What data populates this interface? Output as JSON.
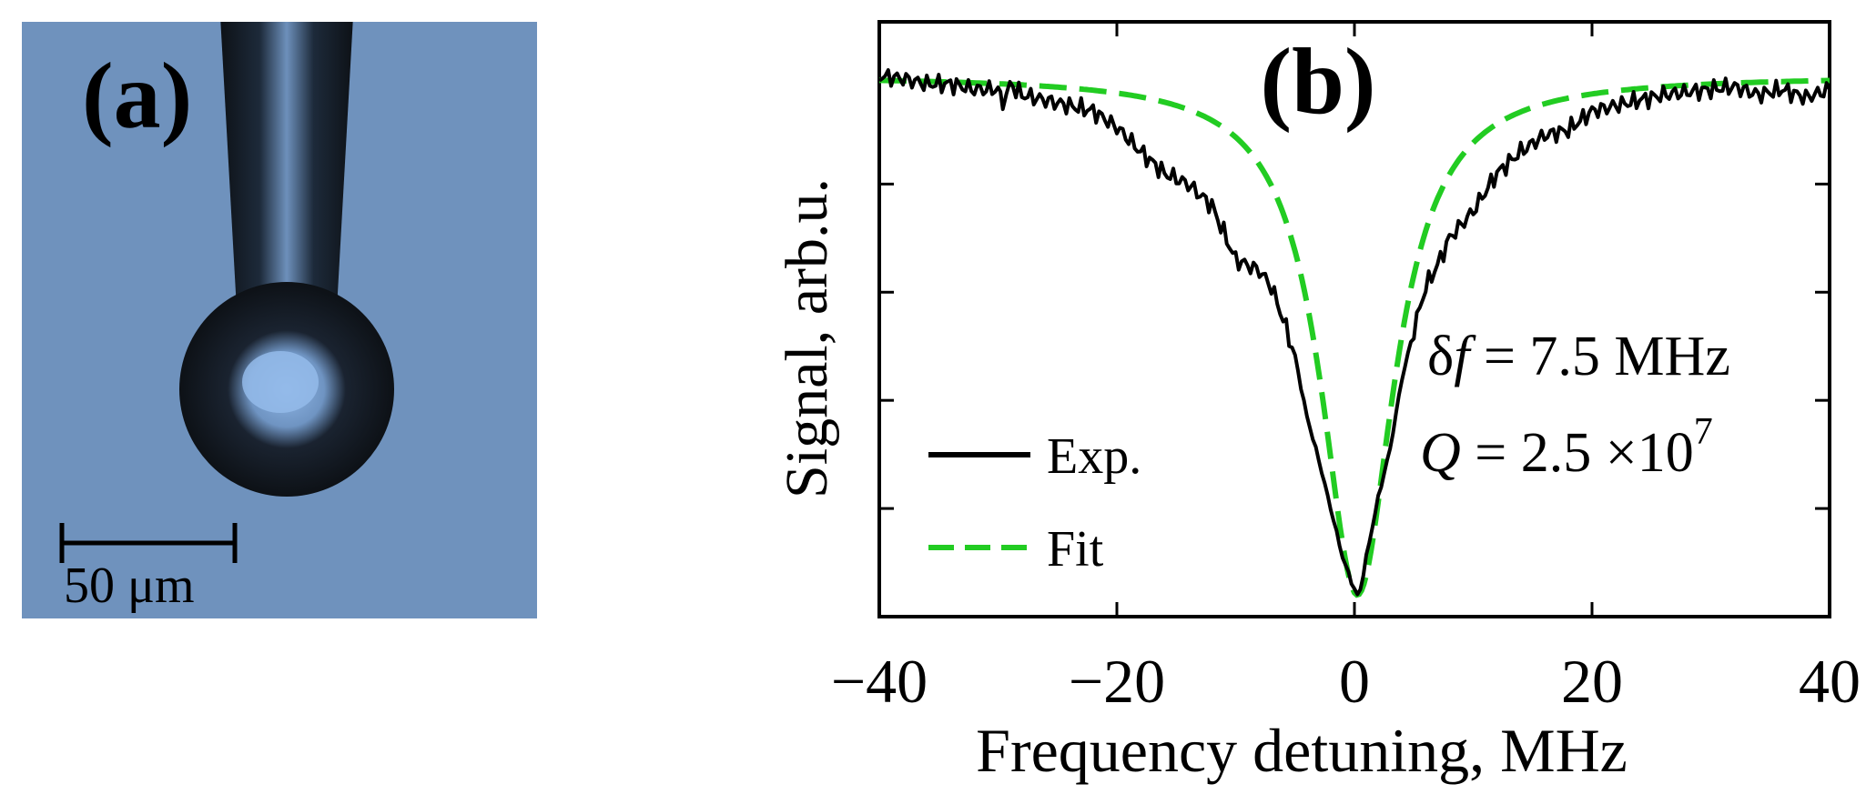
{
  "panel_a": {
    "label": "(a)",
    "scale_bar_label": "50 μm",
    "colors": {
      "background": "#6f92bd",
      "object": "#0d1116",
      "highlight": "#8fb6e6"
    }
  },
  "chart_data": {
    "panel_label": "(b)",
    "type": "line",
    "xlabel": "Frequency detuning, MHz",
    "ylabel": "Signal, arb.u.",
    "xlim": [
      -40,
      40
    ],
    "ylim": [
      0,
      1.1
    ],
    "x_ticks": [
      -40,
      -20,
      0,
      20,
      40
    ],
    "x_tick_labels": [
      "−40",
      "−20",
      "0",
      "20",
      "40"
    ],
    "y_ticks": [
      0.2,
      0.4,
      0.6,
      0.8
    ],
    "y_tick_labels_shown": false,
    "model": "lorentzian",
    "center_MHz": 0.25,
    "fwhm_MHz": 7.5,
    "baseline": 1.0,
    "dip_depth": 0.96,
    "series": [
      {
        "name": "Exp.",
        "style": "solid",
        "color": "#000000",
        "x": [
          -40,
          -38,
          -36,
          -34,
          -32,
          -30,
          -29.6,
          -29,
          -28,
          -26,
          -24,
          -22,
          -20,
          -18,
          -16,
          -14,
          -12,
          -10,
          -8,
          -7,
          -6,
          -5,
          -4,
          -3,
          -2,
          -1,
          0,
          0.25,
          0.5,
          1,
          2,
          3,
          4,
          5,
          6,
          7,
          8,
          10,
          12,
          14,
          16,
          18,
          20,
          22,
          24,
          26,
          28,
          30,
          32,
          34,
          36,
          38,
          40
        ],
        "y": [
          1.0,
          0.995,
          0.985,
          0.985,
          0.975,
          0.975,
          0.945,
          0.985,
          0.965,
          0.955,
          0.945,
          0.935,
          0.905,
          0.86,
          0.82,
          0.8,
          0.76,
          0.66,
          0.64,
          0.61,
          0.55,
          0.48,
          0.37,
          0.29,
          0.2,
          0.11,
          0.05,
          0.04,
          0.05,
          0.11,
          0.22,
          0.31,
          0.44,
          0.53,
          0.61,
          0.65,
          0.7,
          0.75,
          0.82,
          0.86,
          0.89,
          0.9,
          0.935,
          0.945,
          0.955,
          0.965,
          0.97,
          0.975,
          0.98,
          0.965,
          0.975,
          0.96,
          0.975
        ]
      },
      {
        "name": "Fit",
        "style": "dashed",
        "color": "#22cc22"
      }
    ],
    "legend": {
      "position": "bottom-left",
      "entries": [
        "Exp.",
        "Fit"
      ]
    },
    "annotations": [
      {
        "symbol": "δ",
        "var": "f",
        "rest": " = 7.5 MHz"
      },
      {
        "var": "Q",
        "rest": " = 2.5 ×10",
        "sup": "7"
      }
    ]
  }
}
